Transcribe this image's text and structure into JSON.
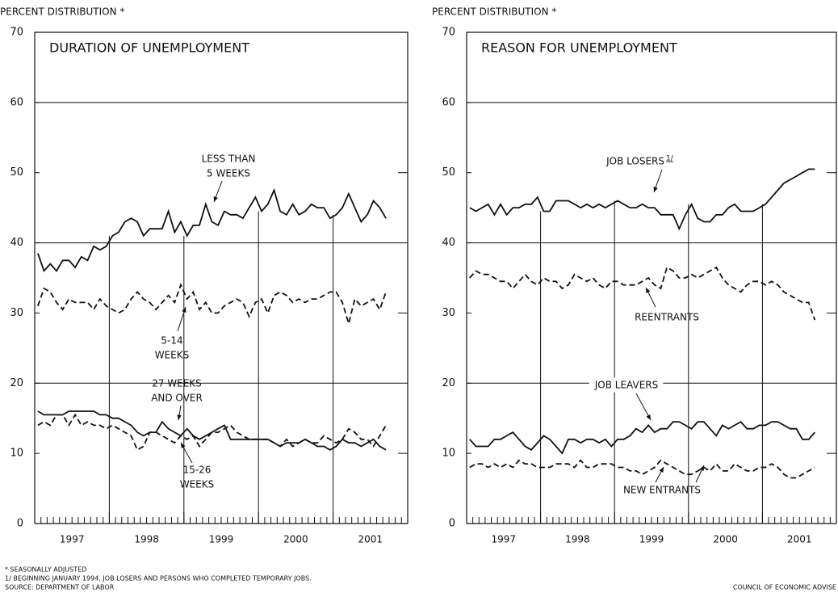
{
  "chart_data": [
    {
      "type": "line",
      "title": "DURATION OF UNEMPLOYMENT",
      "y_label": "PERCENT DISTRIBUTION *",
      "ylim": [
        0,
        70
      ],
      "yticks": [
        0,
        10,
        20,
        30,
        40,
        50,
        60,
        70
      ],
      "gridlines": [
        20,
        40,
        60
      ],
      "right_ticks": [
        10,
        30,
        50
      ],
      "xlim": [
        0,
        60
      ],
      "xticks": [
        {
          "value": 6,
          "label": "1997"
        },
        {
          "value": 18,
          "label": "1998"
        },
        {
          "value": 30,
          "label": "1999"
        },
        {
          "value": 42,
          "label": "2000"
        },
        {
          "value": 54,
          "label": "2001"
        }
      ],
      "minor_xticks": [
        0,
        1,
        2,
        3,
        4,
        5,
        6,
        7,
        8,
        9,
        10,
        11,
        12,
        13,
        14,
        15,
        16,
        17,
        18,
        19,
        20,
        21,
        22,
        23,
        24,
        25,
        26,
        27,
        28,
        29,
        30,
        31,
        32,
        33,
        34,
        35,
        36,
        37,
        38,
        39,
        40,
        41,
        42,
        43,
        44,
        45,
        46,
        47,
        48,
        49,
        50,
        51,
        52,
        53,
        54,
        55,
        56,
        57,
        58,
        59,
        60
      ],
      "vlines": [
        12,
        24,
        36,
        48
      ],
      "x": [
        0.5,
        1.5,
        2.5,
        3.5,
        4.5,
        5.5,
        6.5,
        7.5,
        8.5,
        9.5,
        10.5,
        11.5,
        12.5,
        13.5,
        14.5,
        15.5,
        16.5,
        17.5,
        18.5,
        19.5,
        20.5,
        21.5,
        22.5,
        23.5,
        24.5,
        25.5,
        26.5,
        27.5,
        28.5,
        29.5,
        30.5,
        31.5,
        32.5,
        33.5,
        34.5,
        35.5,
        36.5,
        37.5,
        38.5,
        39.5,
        40.5,
        41.5,
        42.5,
        43.5,
        44.5,
        45.5,
        46.5,
        47.5,
        48.5,
        49.5,
        50.5,
        51.5,
        52.5,
        53.5,
        54.5,
        55.5,
        56.5
      ],
      "series": [
        {
          "name": "LESS THAN 5 WEEKS",
          "color": "#111111",
          "dash": false,
          "values": [
            38.5,
            36,
            37,
            36,
            37.5,
            37.5,
            36.5,
            38,
            37.5,
            39.5,
            39,
            39.5,
            41,
            41.5,
            43,
            43.5,
            43,
            41,
            42,
            42,
            42,
            44.5,
            41.5,
            43,
            41,
            42.5,
            42.5,
            45.5,
            43,
            42.5,
            44.5,
            44,
            44,
            43.5,
            45,
            46.5,
            44.5,
            45.5,
            47.5,
            44.5,
            44,
            45.5,
            44,
            44.5,
            45.5,
            45,
            45,
            43.5,
            44,
            45,
            47,
            45,
            43,
            44,
            46,
            45,
            43.5
          ]
        },
        {
          "name": "5-14 WEEKS",
          "color": "#111111",
          "dash": true,
          "values": [
            31,
            33.5,
            33,
            31.5,
            30.5,
            32,
            31.5,
            31.5,
            31.5,
            30.5,
            32,
            31,
            30.5,
            30,
            30.5,
            32,
            33,
            32,
            31.5,
            30.5,
            31.5,
            32.5,
            31.5,
            34,
            32,
            33,
            30.5,
            31.5,
            30,
            30,
            31,
            31.5,
            32,
            31.5,
            29.5,
            31.5,
            32,
            30,
            32.5,
            33,
            32.5,
            31.5,
            32,
            31.5,
            32,
            32,
            32.5,
            33,
            33,
            31.5,
            28.5,
            32,
            31,
            31.5,
            32,
            30.5,
            33
          ]
        },
        {
          "name": "27 WEEKS AND OVER",
          "color": "#111111",
          "dash": false,
          "values": [
            16,
            15.5,
            15.5,
            15.5,
            15.5,
            16,
            16,
            16,
            16,
            16,
            15.5,
            15.5,
            15,
            15,
            14.5,
            14,
            13,
            12.5,
            13,
            13,
            14.5,
            13.5,
            13,
            12.5,
            13.5,
            12.5,
            12,
            12.5,
            13,
            13.5,
            14,
            12,
            12,
            12,
            12,
            12,
            12,
            12,
            11.5,
            11,
            11.5,
            11.5,
            11.5,
            12,
            11.5,
            11,
            11,
            10.5,
            11,
            12,
            11.5,
            11.5,
            11,
            11.5,
            12,
            11,
            10.5
          ]
        },
        {
          "name": "15-26 WEEKS",
          "color": "#111111",
          "dash": true,
          "values": [
            14,
            14.5,
            14,
            15.5,
            15.5,
            14,
            15.5,
            14,
            14.5,
            14,
            14,
            13.5,
            14,
            13.5,
            13,
            12.5,
            10.5,
            11,
            13,
            13,
            12.5,
            12,
            11.5,
            12.5,
            12,
            12.5,
            11,
            12,
            13,
            13,
            13.5,
            14,
            13,
            12.5,
            12,
            12,
            12,
            12,
            11.5,
            11,
            12,
            11,
            11.5,
            12,
            11.5,
            11.5,
            12.5,
            12,
            11.5,
            12,
            13.5,
            13,
            12,
            12,
            11,
            12.5,
            14
          ]
        }
      ],
      "annotations": [
        [
          "LESS THAN",
          "5 WEEKS"
        ],
        [
          "5-14",
          "WEEKS"
        ],
        [
          "27 WEEKS",
          "AND OVER"
        ],
        [
          "15-26",
          "WEEKS"
        ]
      ]
    },
    {
      "type": "line",
      "title": "REASON FOR UNEMPLOYMENT",
      "y_label": "PERCENT DISTRIBUTION *",
      "ylim": [
        0,
        70
      ],
      "yticks": [
        0,
        10,
        20,
        30,
        40,
        50,
        60,
        70
      ],
      "gridlines": [
        20,
        40,
        60
      ],
      "right_ticks": [
        10,
        30,
        50
      ],
      "xlim": [
        0,
        60
      ],
      "xticks": [
        {
          "value": 6,
          "label": "1997"
        },
        {
          "value": 18,
          "label": "1998"
        },
        {
          "value": 30,
          "label": "1999"
        },
        {
          "value": 42,
          "label": "2000"
        },
        {
          "value": 54,
          "label": "2001"
        }
      ],
      "minor_xticks": [
        0,
        1,
        2,
        3,
        4,
        5,
        6,
        7,
        8,
        9,
        10,
        11,
        12,
        13,
        14,
        15,
        16,
        17,
        18,
        19,
        20,
        21,
        22,
        23,
        24,
        25,
        26,
        27,
        28,
        29,
        30,
        31,
        32,
        33,
        34,
        35,
        36,
        37,
        38,
        39,
        40,
        41,
        42,
        43,
        44,
        45,
        46,
        47,
        48,
        49,
        50,
        51,
        52,
        53,
        54,
        55,
        56,
        57,
        58,
        59,
        60
      ],
      "vlines": [
        12,
        24,
        36,
        48
      ],
      "x": [
        0.5,
        1.5,
        2.5,
        3.5,
        4.5,
        5.5,
        6.5,
        7.5,
        8.5,
        9.5,
        10.5,
        11.5,
        12.5,
        13.5,
        14.5,
        15.5,
        16.5,
        17.5,
        18.5,
        19.5,
        20.5,
        21.5,
        22.5,
        23.5,
        24.5,
        25.5,
        26.5,
        27.5,
        28.5,
        29.5,
        30.5,
        31.5,
        32.5,
        33.5,
        34.5,
        35.5,
        36.5,
        37.5,
        38.5,
        39.5,
        40.5,
        41.5,
        42.5,
        43.5,
        44.5,
        45.5,
        46.5,
        47.5,
        48.5,
        49.5,
        50.5,
        51.5,
        52.5,
        53.5,
        54.5,
        55.5,
        56.5
      ],
      "series": [
        {
          "name": "JOB LOSERS",
          "color": "#111111",
          "dash": false,
          "values": [
            45,
            44.5,
            45,
            45.5,
            44,
            45.5,
            44,
            45,
            45,
            45.5,
            45.5,
            46.5,
            44.5,
            44.5,
            46,
            46,
            46,
            45.5,
            45,
            45.5,
            45,
            45.5,
            45,
            45.5,
            46,
            45.5,
            45,
            45,
            45.5,
            45,
            45,
            44,
            44,
            44,
            42,
            44,
            45.5,
            43.5,
            43,
            43,
            44,
            44,
            45,
            45.5,
            44.5,
            44.5,
            44.5,
            45,
            45.5,
            46.5,
            47.5,
            48.5,
            49,
            49.5,
            50,
            50.5,
            50.5
          ]
        },
        {
          "name": "REENTRANTS",
          "color": "#111111",
          "dash": true,
          "values": [
            35,
            36,
            35.5,
            35.5,
            35,
            34.5,
            34.5,
            33.5,
            34.5,
            35.5,
            34.5,
            34,
            35,
            34.5,
            34.5,
            33.5,
            34,
            35.5,
            35,
            34.5,
            35,
            34,
            33.5,
            34.5,
            34.5,
            34,
            34,
            34,
            34.5,
            35,
            34,
            33.5,
            36.5,
            36,
            35,
            35,
            35.5,
            35,
            35.5,
            36,
            36.5,
            35,
            34,
            33.5,
            33,
            34,
            34.5,
            34.5,
            34,
            34.5,
            34,
            33,
            32.5,
            32,
            31.5,
            31.5,
            29
          ]
        },
        {
          "name": "JOB LEAVERS",
          "color": "#111111",
          "dash": false,
          "values": [
            12,
            11,
            11,
            11,
            12,
            12,
            12.5,
            13,
            12,
            11,
            10.5,
            11.5,
            12.5,
            12,
            11,
            10,
            12,
            12,
            11.5,
            12,
            12,
            11.5,
            12,
            11,
            12,
            12,
            12.5,
            13.5,
            13,
            14,
            13,
            13.5,
            13.5,
            14.5,
            14.5,
            14,
            13.5,
            14.5,
            14.5,
            13.5,
            12.5,
            14,
            13.5,
            14,
            14.5,
            13.5,
            13.5,
            14,
            14,
            14.5,
            14.5,
            14,
            13.5,
            13.5,
            12,
            12,
            13
          ]
        },
        {
          "name": "NEW ENTRANTS",
          "color": "#111111",
          "dash": true,
          "values": [
            8,
            8.5,
            8.5,
            8,
            8.5,
            8,
            8.5,
            8,
            9,
            8.5,
            8.5,
            8,
            8,
            8,
            8.5,
            8.5,
            8.5,
            8,
            9,
            8,
            8,
            8.5,
            8.5,
            8.5,
            8,
            8,
            7.5,
            7.5,
            7,
            7.5,
            8,
            9,
            8.5,
            8,
            7.5,
            7,
            7,
            7.5,
            8,
            7.5,
            8.5,
            7.5,
            7.5,
            8.5,
            8,
            7.5,
            7.5,
            8,
            8,
            8.5,
            8,
            7,
            6.5,
            6.5,
            7,
            7.5,
            8
          ]
        }
      ],
      "annotations": [
        [
          "JOB LOSERS"
        ],
        [
          "REENTRANTS"
        ],
        [
          "JOB LEAVERS"
        ],
        [
          "NEW ENTRANTS"
        ]
      ],
      "footnote_ref": "1/"
    }
  ],
  "footer": {
    "notes": [
      "* SEASONALLY ADJUSTED",
      "1/ BEGINNING JANUARY 1994, JOB LOSERS AND PERSONS WHO COMPLETED TEMPORARY JOBS.",
      "SOURCE: DEPARTMENT OF LABOR"
    ],
    "credit": "COUNCIL OF ECONOMIC ADVISE"
  }
}
